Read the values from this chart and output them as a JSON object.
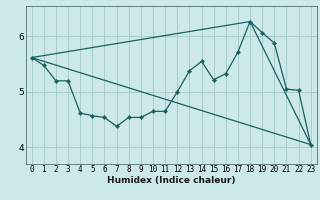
{
  "title": "",
  "xlabel": "Humidex (Indice chaleur)",
  "background_color": "#cce8e8",
  "grid_color": "#aacccc",
  "line_color": "#1a6060",
  "xlim": [
    -0.5,
    23.5
  ],
  "ylim": [
    3.7,
    6.55
  ],
  "yticks": [
    4,
    5,
    6
  ],
  "xticks": [
    0,
    1,
    2,
    3,
    4,
    5,
    6,
    7,
    8,
    9,
    10,
    11,
    12,
    13,
    14,
    15,
    16,
    17,
    18,
    19,
    20,
    21,
    22,
    23
  ],
  "line1_x": [
    0,
    1,
    2,
    3,
    4,
    5,
    6,
    7,
    8,
    9,
    10,
    11,
    12,
    13,
    14,
    15,
    16,
    17,
    18,
    19,
    20,
    21,
    22,
    23
  ],
  "line1_y": [
    5.62,
    5.48,
    5.2,
    5.2,
    4.62,
    4.57,
    4.54,
    4.38,
    4.54,
    4.54,
    4.65,
    4.65,
    5.0,
    5.38,
    5.55,
    5.22,
    5.33,
    5.72,
    6.27,
    6.07,
    5.88,
    5.05,
    5.03,
    4.05
  ],
  "line2_x": [
    0,
    23
  ],
  "line2_y": [
    5.62,
    4.05
  ],
  "line3_x": [
    0,
    18,
    23
  ],
  "line3_y": [
    5.62,
    6.27,
    4.05
  ]
}
